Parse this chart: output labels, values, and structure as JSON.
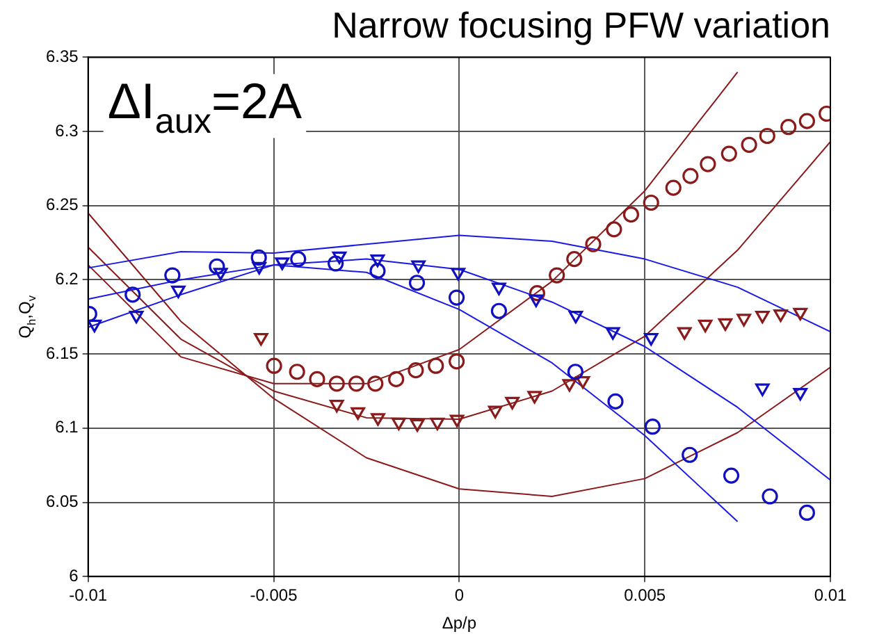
{
  "chart_data": {
    "type": "scatter",
    "title": "Narrow focusing PFW variation",
    "xlabel": "Δp/p",
    "ylabel": "Q$_{h}$,Q$_{v}$",
    "annotations": [
      "ΔI$_{aux}$=2A"
    ],
    "xlim": [
      -0.01,
      0.01
    ],
    "xticks": [
      -0.01,
      -0.005,
      0,
      0.005,
      0.01
    ],
    "ylim": [
      6,
      6.35
    ],
    "yticks": [
      6,
      6.05,
      6.1,
      6.15,
      6.2,
      6.25,
      6.3,
      6.35
    ],
    "grid": true,
    "series": [
      {
        "type": "scatter",
        "marker": "circle",
        "color": "#1010c0",
        "x": [
          -0.00997,
          -0.0088,
          -0.00773,
          -0.00653,
          -0.0054,
          -0.00434,
          -0.00333,
          -0.0022,
          -0.00114,
          -7e-05,
          0.00107,
          0.00313,
          0.00421,
          0.00521,
          0.00621,
          0.00733,
          0.00837,
          0.00937
        ],
        "values": [
          6.177,
          6.19,
          6.203,
          6.209,
          6.215,
          6.214,
          6.211,
          6.206,
          6.198,
          6.188,
          6.179,
          6.138,
          6.118,
          6.101,
          6.082,
          6.068,
          6.054,
          6.043
        ]
      },
      {
        "type": "scatter",
        "marker": "triangle",
        "color": "#1010c0",
        "x": [
          -0.00983,
          -0.0087,
          -0.00757,
          -0.00643,
          -0.00539,
          -0.00477,
          -0.00323,
          -0.0022,
          -0.0011,
          -3e-05,
          0.00107,
          0.00207,
          0.00314,
          0.00414,
          0.00517,
          0.00817,
          0.00919
        ],
        "values": [
          6.17,
          6.176,
          6.193,
          6.205,
          6.209,
          6.212,
          6.216,
          6.214,
          6.21,
          6.205,
          6.195,
          6.187,
          6.176,
          6.165,
          6.161,
          6.127,
          6.124
        ]
      },
      {
        "type": "scatter",
        "marker": "circle",
        "color": "#8b1a1a",
        "x": [
          -0.00499,
          -0.00437,
          -0.00383,
          -0.0033,
          -0.00277,
          -0.00226,
          -0.0017,
          -0.00117,
          -0.00063,
          -7e-05,
          0.0021,
          0.00263,
          0.0031,
          0.00361,
          0.00417,
          0.00463,
          0.00517,
          0.00577,
          0.00623,
          0.0067,
          0.00727,
          0.00781,
          0.0083,
          0.00887,
          0.00937,
          0.0099
        ],
        "values": [
          6.142,
          6.138,
          6.133,
          6.13,
          6.13,
          6.13,
          6.133,
          6.139,
          6.142,
          6.145,
          6.191,
          6.203,
          6.214,
          6.224,
          6.234,
          6.244,
          6.252,
          6.262,
          6.27,
          6.278,
          6.285,
          6.291,
          6.297,
          6.303,
          6.307,
          6.312
        ]
      },
      {
        "type": "scatter",
        "marker": "triangle",
        "color": "#8b1a1a",
        "x": [
          -0.00534,
          -0.0033,
          -0.00273,
          -0.00219,
          -0.00163,
          -0.00113,
          -0.00059,
          -6e-05,
          0.00097,
          0.00143,
          0.00203,
          0.00297,
          0.00333,
          0.00607,
          0.00663,
          0.00717,
          0.00767,
          0.00817,
          0.00866,
          0.00919
        ],
        "values": [
          6.161,
          6.116,
          6.111,
          6.107,
          6.104,
          6.103,
          6.104,
          6.106,
          6.112,
          6.118,
          6.122,
          6.13,
          6.132,
          6.165,
          6.17,
          6.171,
          6.174,
          6.176,
          6.177,
          6.178
        ]
      },
      {
        "type": "line",
        "marker": "none",
        "color": "#1a1ae6",
        "x": [
          -0.01,
          -0.0075,
          -0.005,
          -0.0025,
          0,
          0.0025,
          0.005,
          0.0075,
          0.01
        ],
        "values": [
          6.208,
          6.219,
          6.218,
          6.224,
          6.23,
          6.226,
          6.214,
          6.195,
          6.165
        ]
      },
      {
        "type": "line",
        "marker": "none",
        "color": "#1a1ae6",
        "x": [
          -0.01,
          -0.0075,
          -0.005,
          -0.0025,
          0,
          0.0025,
          0.005,
          0.0075,
          0.01
        ],
        "values": [
          6.187,
          6.2,
          6.21,
          6.214,
          6.207,
          6.185,
          6.155,
          6.114,
          6.065
        ]
      },
      {
        "type": "line",
        "marker": "none",
        "color": "#1a1ae6",
        "x": [
          -0.01,
          -0.0075,
          -0.005,
          -0.0025,
          0,
          0.0025,
          0.005,
          0.0075
        ],
        "values": [
          6.168,
          6.19,
          6.21,
          6.205,
          6.18,
          6.144,
          6.095,
          6.037
        ]
      },
      {
        "type": "line",
        "marker": "none",
        "color": "#8b1a1a",
        "x": [
          -0.01,
          -0.0075,
          -0.005,
          -0.0025,
          0,
          0.0025,
          0.005,
          0.0075,
          0.01
        ],
        "values": [
          6.245,
          6.172,
          6.12,
          6.08,
          6.059,
          6.054,
          6.066,
          6.097,
          6.141
        ]
      },
      {
        "type": "line",
        "marker": "none",
        "color": "#8b1a1a",
        "x": [
          -0.01,
          -0.0075,
          -0.005,
          -0.0025,
          0,
          0.0025,
          0.005,
          0.0075,
          0.01
        ],
        "values": [
          6.222,
          6.16,
          6.125,
          6.107,
          6.106,
          6.125,
          6.162,
          6.22,
          6.293
        ]
      },
      {
        "type": "line",
        "marker": "none",
        "color": "#8b1a1a",
        "x": [
          -0.01,
          -0.0075,
          -0.005,
          -0.0025,
          0,
          0.0025,
          0.005,
          0.0075
        ],
        "values": [
          6.21,
          6.148,
          6.13,
          6.13,
          6.153,
          6.199,
          6.26,
          6.34
        ]
      }
    ]
  }
}
